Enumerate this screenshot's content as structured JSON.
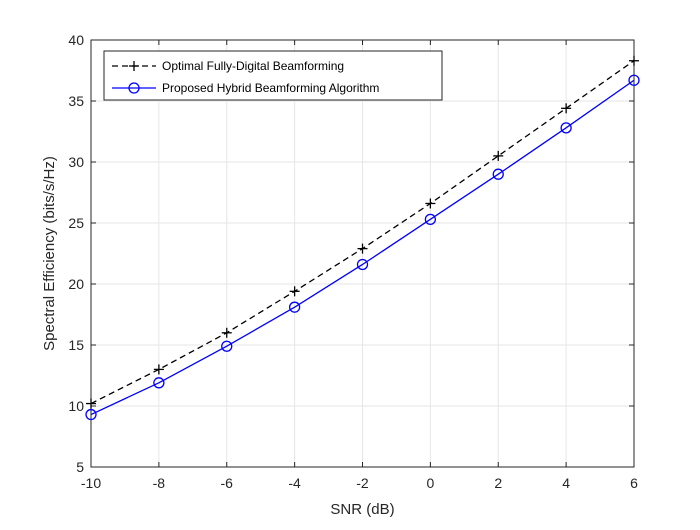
{
  "chart_data": {
    "type": "line",
    "xlabel": "SNR (dB)",
    "ylabel": "Spectral Efficiency (bits/s/Hz)",
    "xlim": [
      -10,
      6
    ],
    "ylim": [
      5,
      40
    ],
    "xticks": [
      -10,
      -8,
      -6,
      -4,
      -2,
      0,
      2,
      4,
      6
    ],
    "yticks": [
      5,
      10,
      15,
      20,
      25,
      30,
      35,
      40
    ],
    "grid": true,
    "legend_position": "top-left",
    "x": [
      -10,
      -8,
      -6,
      -4,
      -2,
      0,
      2,
      4,
      6
    ],
    "series": [
      {
        "name": "Optimal Fully-Digital Beamforming",
        "values": [
          10.2,
          13.0,
          16.0,
          19.4,
          22.9,
          26.6,
          30.5,
          34.4,
          38.3
        ],
        "color": "#000000",
        "line_style": "dashed",
        "marker": "plus"
      },
      {
        "name": "Proposed Hybrid Beamforming Algorithm",
        "values": [
          9.3,
          11.9,
          14.9,
          18.1,
          21.6,
          25.3,
          29.0,
          32.8,
          36.7
        ],
        "color": "#0000ff",
        "line_style": "solid",
        "marker": "circle"
      }
    ]
  }
}
